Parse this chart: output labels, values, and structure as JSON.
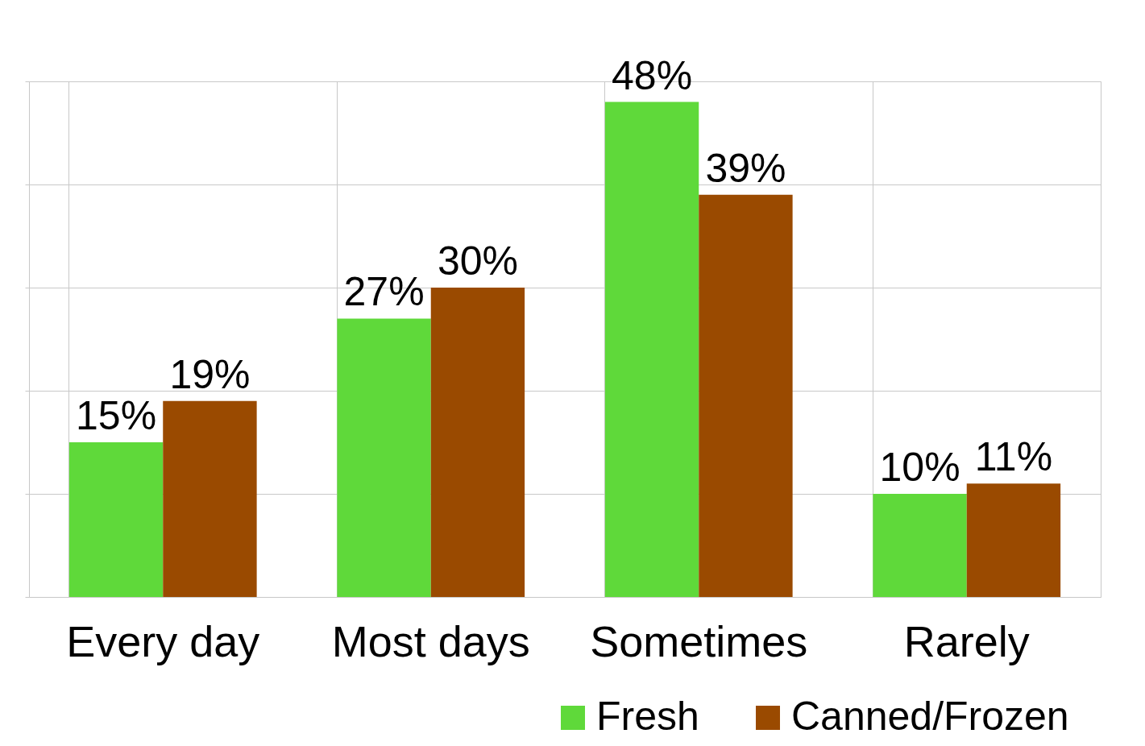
{
  "chart_data": {
    "type": "bar",
    "categories": [
      "Every day",
      "Most days",
      "Sometimes",
      "Rarely"
    ],
    "series": [
      {
        "name": "Fresh",
        "color": "#5fd93a",
        "values": [
          15,
          27,
          48,
          10
        ],
        "value_labels": [
          "15%",
          "27%",
          "48%",
          "10%"
        ]
      },
      {
        "name": "Canned/Frozen",
        "color": "#9a4a00",
        "values": [
          19,
          30,
          39,
          11
        ],
        "value_labels": [
          "19%",
          "30%",
          "39%",
          "11%"
        ]
      }
    ],
    "tick_labels": "x",
    "grid": true,
    "legend": "bottom right"
  }
}
